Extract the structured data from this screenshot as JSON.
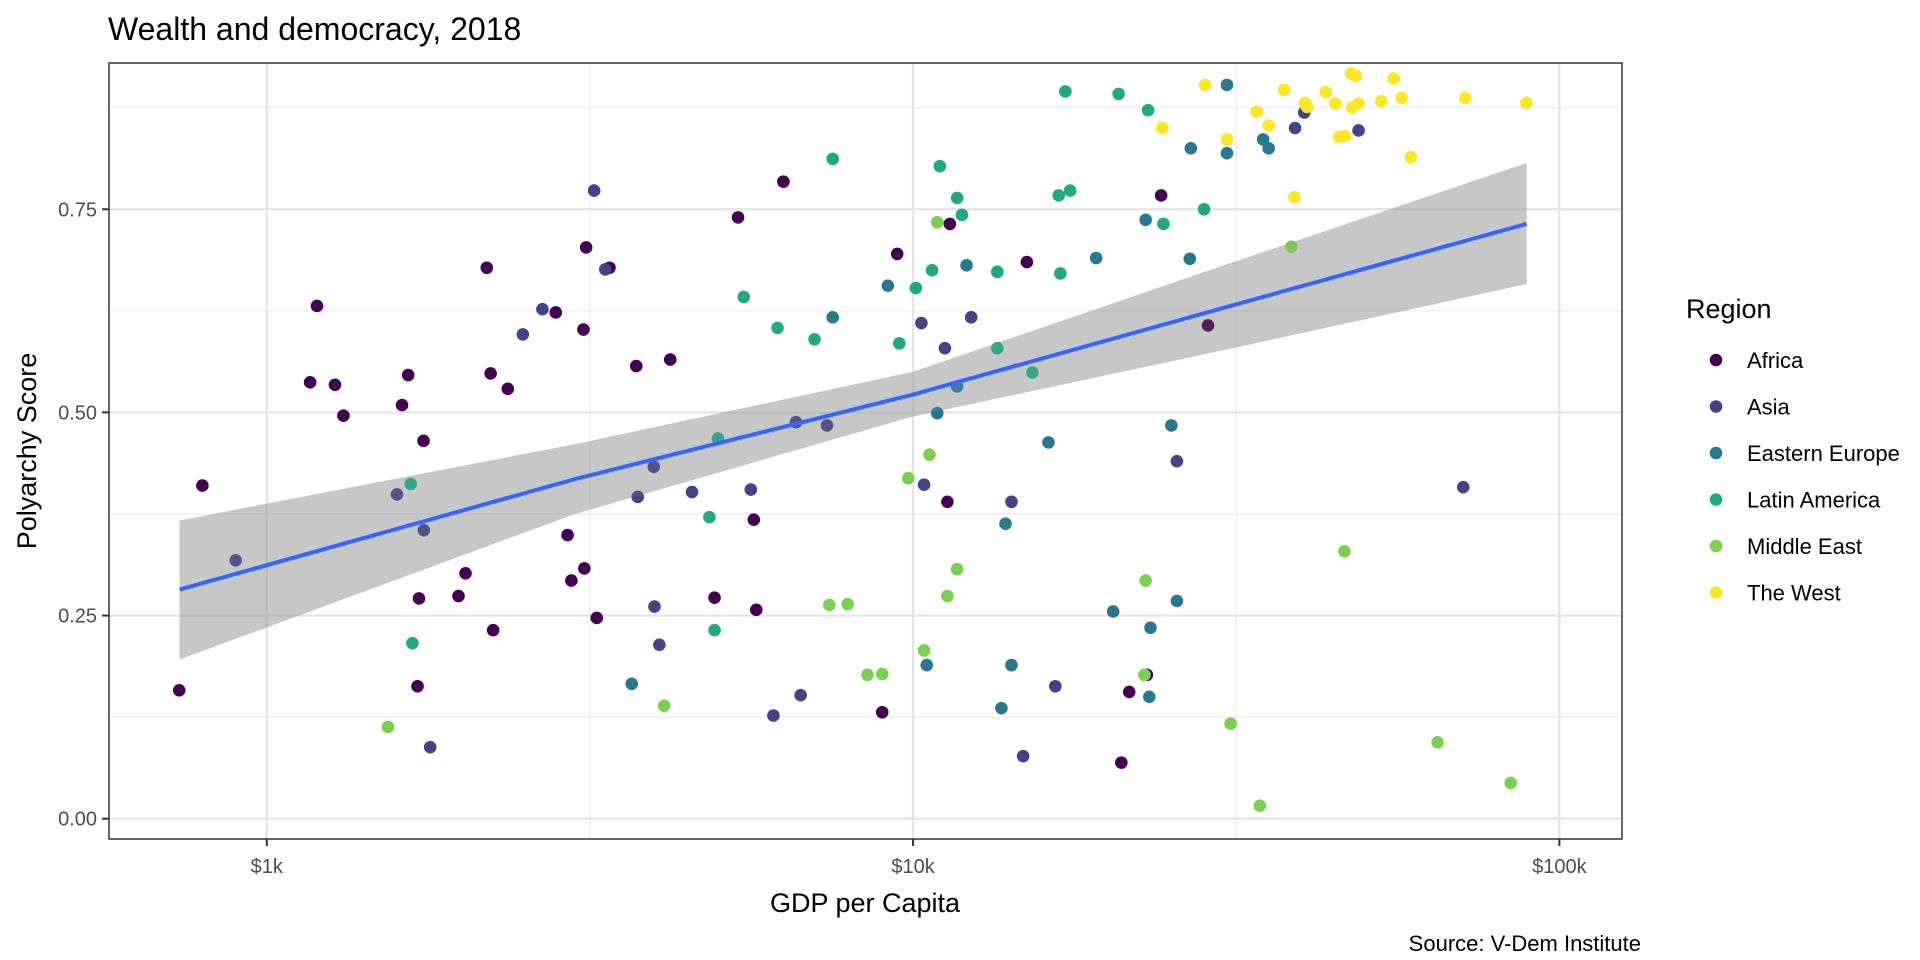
{
  "chart_data": {
    "type": "scatter",
    "title": "Wealth and democracy, 2018",
    "xlabel": "GDP per Capita",
    "ylabel": "Polyarchy Score",
    "caption": "Source: V-Dem Institute",
    "x_scale": "log10",
    "xlim": [
      570,
      125000
    ],
    "ylim": [
      -0.025,
      0.93
    ],
    "x_ticks": [
      {
        "value": 1000,
        "label": "$1k"
      },
      {
        "value": 10000,
        "label": "$10k"
      },
      {
        "value": 100000,
        "label": "$100k"
      }
    ],
    "y_ticks": [
      {
        "value": 0.0,
        "label": "0.00"
      },
      {
        "value": 0.25,
        "label": "0.25"
      },
      {
        "value": 0.5,
        "label": "0.50"
      },
      {
        "value": 0.75,
        "label": "0.75"
      }
    ],
    "grid": true,
    "legend": {
      "title": "Region",
      "position": "right",
      "entries": [
        {
          "name": "Africa",
          "color": "#440154"
        },
        {
          "name": "Asia",
          "color": "#414487"
        },
        {
          "name": "Eastern Europe",
          "color": "#2A788E"
        },
        {
          "name": "Latin America",
          "color": "#22A884"
        },
        {
          "name": "Middle East",
          "color": "#7AD151"
        },
        {
          "name": "The West",
          "color": "#FDE725"
        }
      ]
    },
    "trend": {
      "method": "lm",
      "line_color": "#3366FF",
      "band_color": "#999999",
      "points": [
        {
          "x": 733,
          "y": 0.282,
          "lower": 0.196,
          "upper": 0.367
        },
        {
          "x": 3000,
          "y": 0.418,
          "lower": 0.375,
          "upper": 0.461
        },
        {
          "x": 10000,
          "y": 0.522,
          "lower": 0.495,
          "upper": 0.55
        },
        {
          "x": 30000,
          "y": 0.628,
          "lower": 0.576,
          "upper": 0.68
        },
        {
          "x": 89000,
          "y": 0.732,
          "lower": 0.658,
          "upper": 0.807
        }
      ]
    },
    "series": [
      {
        "name": "Africa",
        "color": "#440154",
        "points": [
          [
            732,
            0.158
          ],
          [
            795,
            0.41
          ],
          [
            1167,
            0.537
          ],
          [
            1196,
            0.631
          ],
          [
            1275,
            0.534
          ],
          [
            1314,
            0.496
          ],
          [
            1619,
            0.509
          ],
          [
            1655,
            0.546
          ],
          [
            1720,
            0.271
          ],
          [
            1748,
            0.465
          ],
          [
            1711,
            0.163
          ],
          [
            1980,
            0.274
          ],
          [
            2030,
            0.302
          ],
          [
            2190,
            0.678
          ],
          [
            2220,
            0.548
          ],
          [
            2240,
            0.232
          ],
          [
            2360,
            0.529
          ],
          [
            2800,
            0.623
          ],
          [
            2920,
            0.349
          ],
          [
            2960,
            0.293
          ],
          [
            3100,
            0.308
          ],
          [
            3090,
            0.602
          ],
          [
            3120,
            0.703
          ],
          [
            3240,
            0.247
          ],
          [
            3390,
            0.678
          ],
          [
            3730,
            0.557
          ],
          [
            4210,
            0.565
          ],
          [
            4930,
            0.272
          ],
          [
            5360,
            0.74
          ],
          [
            5670,
            0.368
          ],
          [
            5720,
            0.257
          ],
          [
            6300,
            0.784
          ],
          [
            8960,
            0.131
          ],
          [
            9450,
            0.695
          ],
          [
            11400,
            0.732
          ],
          [
            11300,
            0.39
          ],
          [
            15000,
            0.685
          ],
          [
            21600,
            0.156
          ],
          [
            21000,
            0.069
          ],
          [
            23000,
            0.177
          ],
          [
            24200,
            0.767
          ],
          [
            28600,
            0.607
          ]
        ]
      },
      {
        "name": "Asia",
        "color": "#414487",
        "points": [
          [
            895,
            0.318
          ],
          [
            1590,
            0.399
          ],
          [
            1750,
            0.355
          ],
          [
            1790,
            0.088
          ],
          [
            2490,
            0.596
          ],
          [
            2670,
            0.627
          ],
          [
            3210,
            0.773
          ],
          [
            3340,
            0.676
          ],
          [
            3750,
            0.396
          ],
          [
            3970,
            0.433
          ],
          [
            3980,
            0.261
          ],
          [
            4050,
            0.214
          ],
          [
            4550,
            0.402
          ],
          [
            5610,
            0.405
          ],
          [
            6080,
            0.127
          ],
          [
            6590,
            0.488
          ],
          [
            6700,
            0.152
          ],
          [
            7360,
            0.484
          ],
          [
            10400,
            0.411
          ],
          [
            10300,
            0.61
          ],
          [
            11200,
            0.579
          ],
          [
            12300,
            0.617
          ],
          [
            14200,
            0.39
          ],
          [
            14800,
            0.077
          ],
          [
            16600,
            0.163
          ],
          [
            25600,
            0.44
          ],
          [
            39000,
            0.85
          ],
          [
            40300,
            0.869
          ],
          [
            48900,
            0.847
          ],
          [
            71000,
            0.408
          ]
        ]
      },
      {
        "name": "Eastern Europe",
        "color": "#2A788E",
        "points": [
          [
            3670,
            0.166
          ],
          [
            7510,
            0.617
          ],
          [
            9140,
            0.656
          ],
          [
            10900,
            0.499
          ],
          [
            10500,
            0.189
          ],
          [
            11700,
            0.532
          ],
          [
            12100,
            0.681
          ],
          [
            13700,
            0.136
          ],
          [
            13900,
            0.363
          ],
          [
            14200,
            0.189
          ],
          [
            16200,
            0.463
          ],
          [
            19200,
            0.69
          ],
          [
            20400,
            0.255
          ],
          [
            23200,
            0.15
          ],
          [
            22900,
            0.737
          ],
          [
            23300,
            0.235
          ],
          [
            25100,
            0.484
          ],
          [
            25600,
            0.268
          ],
          [
            26800,
            0.689
          ],
          [
            26900,
            0.825
          ],
          [
            30600,
            0.903
          ],
          [
            30600,
            0.819
          ],
          [
            34800,
            0.836
          ],
          [
            35500,
            0.825
          ]
        ]
      },
      {
        "name": "Latin America",
        "color": "#22A884",
        "points": [
          [
            1670,
            0.412
          ],
          [
            1680,
            0.216
          ],
          [
            4930,
            0.232
          ],
          [
            4840,
            0.371
          ],
          [
            4990,
            0.468
          ],
          [
            5470,
            0.642
          ],
          [
            6170,
            0.604
          ],
          [
            7040,
            0.59
          ],
          [
            7510,
            0.812
          ],
          [
            9520,
            0.585
          ],
          [
            10100,
            0.653
          ],
          [
            10700,
            0.675
          ],
          [
            11000,
            0.803
          ],
          [
            11700,
            0.764
          ],
          [
            11900,
            0.743
          ],
          [
            13500,
            0.673
          ],
          [
            13500,
            0.579
          ],
          [
            15300,
            0.549
          ],
          [
            16800,
            0.767
          ],
          [
            16900,
            0.671
          ],
          [
            17200,
            0.895
          ],
          [
            17500,
            0.773
          ],
          [
            20800,
            0.892
          ],
          [
            23100,
            0.872
          ],
          [
            24400,
            0.732
          ],
          [
            28200,
            0.75
          ]
        ]
      },
      {
        "name": "Middle East",
        "color": "#7AD151",
        "points": [
          [
            1540,
            0.113
          ],
          [
            4120,
            0.139
          ],
          [
            7420,
            0.263
          ],
          [
            7920,
            0.264
          ],
          [
            8500,
            0.177
          ],
          [
            8960,
            0.178
          ],
          [
            9830,
            0.419
          ],
          [
            10400,
            0.207
          ],
          [
            10600,
            0.448
          ],
          [
            10900,
            0.734
          ],
          [
            11300,
            0.274
          ],
          [
            11700,
            0.307
          ],
          [
            22800,
            0.177
          ],
          [
            22900,
            0.293
          ],
          [
            31000,
            0.117
          ],
          [
            34400,
            0.016
          ],
          [
            38500,
            0.704
          ],
          [
            46500,
            0.329
          ],
          [
            64800,
            0.094
          ],
          [
            84100,
            0.044
          ]
        ]
      },
      {
        "name": "The West",
        "color": "#FDE725",
        "points": [
          [
            24300,
            0.85
          ],
          [
            28300,
            0.903
          ],
          [
            30600,
            0.836
          ],
          [
            34000,
            0.87
          ],
          [
            35500,
            0.853
          ],
          [
            37500,
            0.897
          ],
          [
            38900,
            0.765
          ],
          [
            40400,
            0.881
          ],
          [
            40700,
            0.876
          ],
          [
            43500,
            0.894
          ],
          [
            45000,
            0.88
          ],
          [
            45600,
            0.839
          ],
          [
            46600,
            0.84
          ],
          [
            47600,
            0.917
          ],
          [
            48400,
            0.914
          ],
          [
            47800,
            0.875
          ],
          [
            48900,
            0.88
          ],
          [
            53000,
            0.883
          ],
          [
            55400,
            0.911
          ],
          [
            57000,
            0.887
          ],
          [
            58900,
            0.814
          ],
          [
            71500,
            0.887
          ],
          [
            88900,
            0.881
          ]
        ]
      }
    ]
  }
}
